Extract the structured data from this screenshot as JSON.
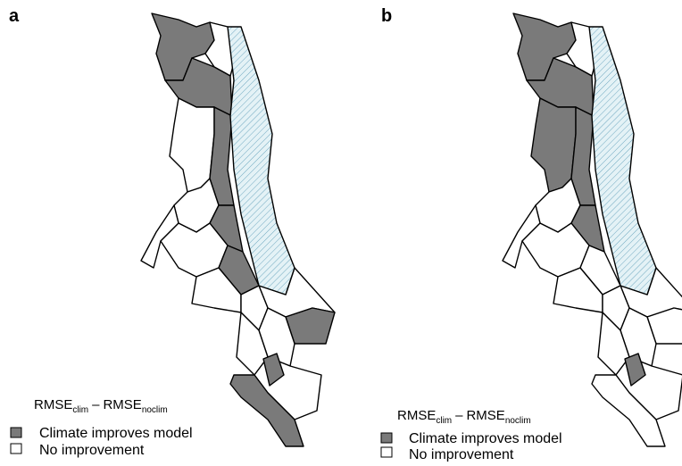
{
  "panels": [
    {
      "label": "a",
      "legend": {
        "title": {
          "main1": "RMSE",
          "sub1": "clim",
          "dash": "–",
          "main2": "RMSE",
          "sub2": "noclim"
        },
        "items": [
          "Climate improves model",
          "No improvement"
        ]
      }
    },
    {
      "label": "b",
      "legend": {
        "title": {
          "main1": "RMSE",
          "sub1": "clim",
          "dash": "–",
          "main2": "RMSE",
          "sub2": "noclim"
        },
        "items": [
          "Climate improves model",
          "No improvement"
        ]
      }
    }
  ]
}
